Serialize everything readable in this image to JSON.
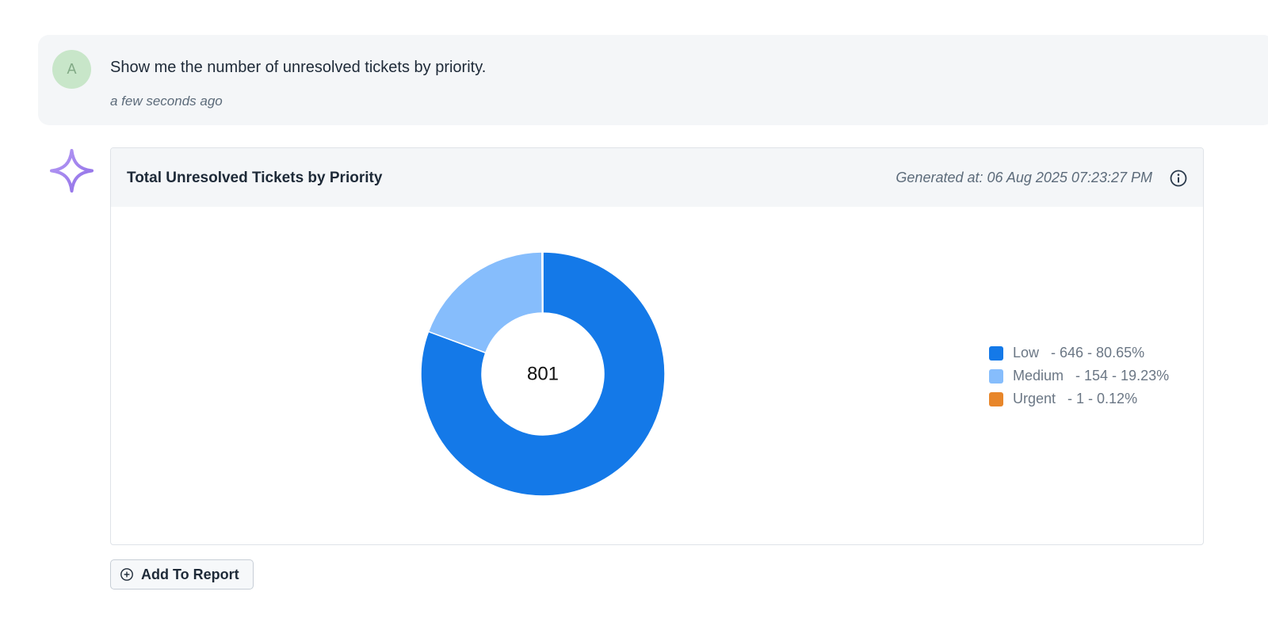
{
  "user_message": {
    "avatar_initial": "A",
    "text": "Show me the number of unresolved tickets by priority.",
    "timestamp": "a few seconds ago"
  },
  "assistant": {
    "icon": "sparkle-icon"
  },
  "card": {
    "title": "Total Unresolved Tickets by Priority",
    "generated_at": "Generated at: 06 Aug 2025 07:23:27 PM",
    "info_icon": "info-icon"
  },
  "chart_data": {
    "type": "pie",
    "variant": "donut",
    "center_label": "801",
    "categories": [
      "Low",
      "Medium",
      "Urgent"
    ],
    "values": [
      646,
      154,
      1
    ],
    "percents": [
      "80.65%",
      "19.23%",
      "0.12%"
    ],
    "colors": [
      "#1479e8",
      "#86bdfc",
      "#e8862a"
    ],
    "legend_labels": [
      "Low   - 646 - 80.65%",
      "Medium   - 154 - 19.23%",
      "Urgent   - 1 - 0.12%"
    ],
    "legend_position": "right"
  },
  "actions": {
    "add_to_report": "Add To Report"
  }
}
